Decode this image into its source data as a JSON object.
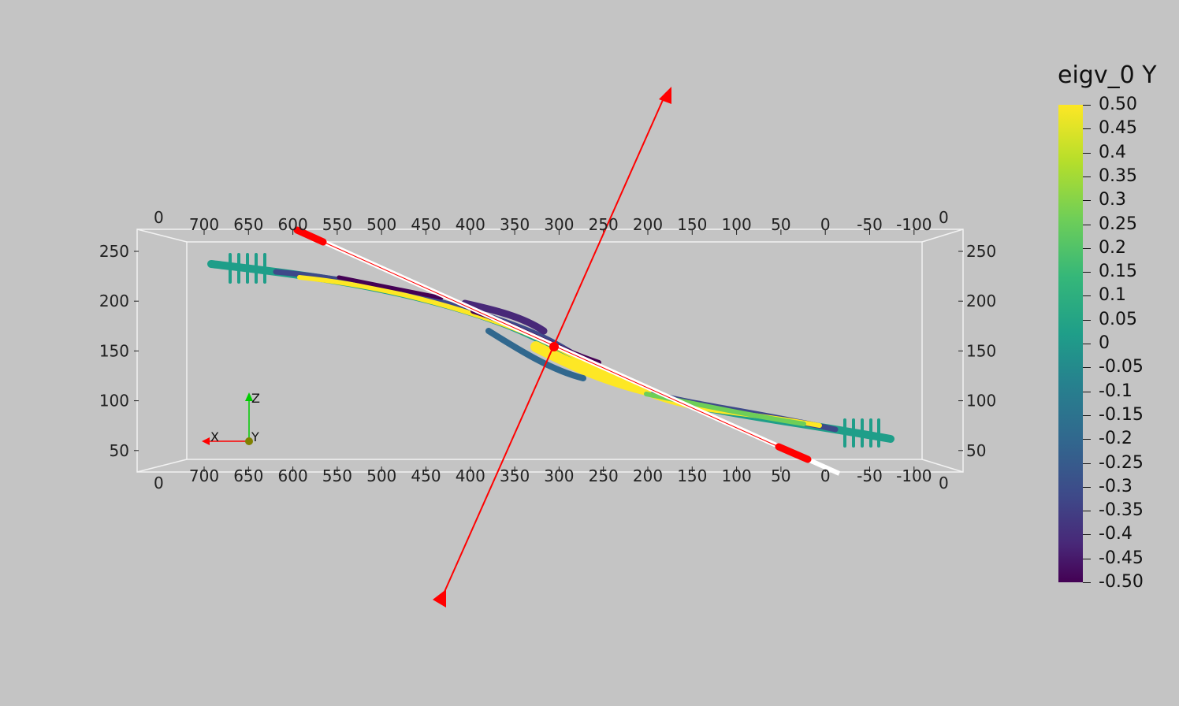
{
  "scalar_bar": {
    "title": "eigv_0 Y",
    "labels": [
      "0.50",
      "0.45",
      "0.4",
      "0.35",
      "0.3",
      "0.25",
      "0.2",
      "0.15",
      "0.1",
      "0.05",
      "0",
      "-0.05",
      "-0.1",
      "-0.15",
      "-0.2",
      "-0.25",
      "-0.3",
      "-0.35",
      "-0.4",
      "-0.45",
      "-0.50"
    ]
  },
  "axes_grid": {
    "x_ticks": [
      "700",
      "650",
      "600",
      "550",
      "500",
      "450",
      "400",
      "350",
      "300",
      "250",
      "200",
      "150",
      "100",
      "50",
      "0",
      "-50",
      "-100"
    ],
    "z_ticks": [
      "250",
      "200",
      "150",
      "100",
      "50"
    ],
    "corner_label": "0"
  },
  "orientation_axes": {
    "x_label": "X",
    "y_label": "Y",
    "z_label": "Z"
  },
  "colors": {
    "background": "#c4c4c4",
    "widget_red": "#ff0000",
    "axis_x": "#ff0000",
    "axis_y": "#ffff00",
    "axis_z": "#00cc00"
  }
}
